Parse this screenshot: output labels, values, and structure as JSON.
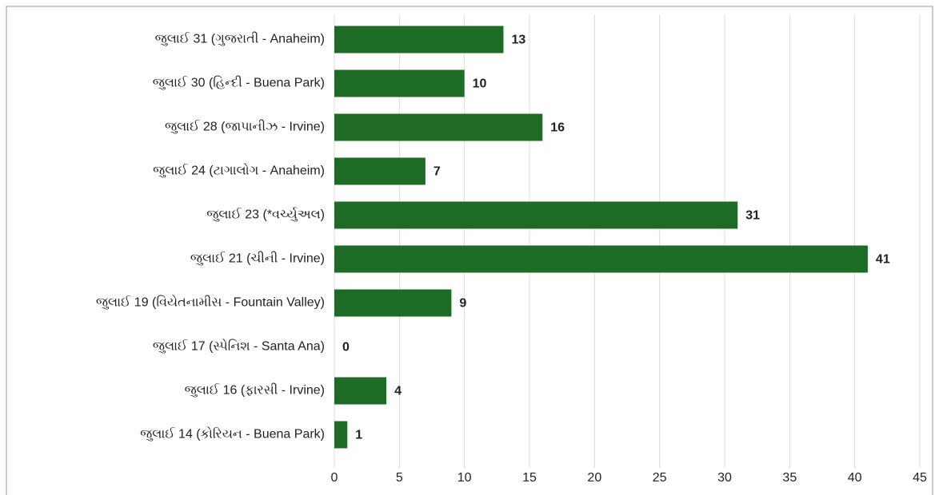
{
  "chart_data": {
    "type": "bar",
    "orientation": "horizontal",
    "categories": [
      "જુલાઈ 31 (ગુજરાતી - Anaheim)",
      "જુલાઈ 30 (હિન્દી - Buena Park)",
      "જુલાઈ 28 (જાપાનીઝ - Irvine)",
      "જુલાઈ 24 (ટાગાલોગ - Anaheim)",
      "જુલાઈ 23 (*વર્ચ્યુઅલ)",
      "જુલાઈ 21 (ચીની - Irvine)",
      "જુલાઈ 19 (વિયેતનામીસ - Fountain Valley)",
      "જુલાઈ 17 (સ્પેનિશ - Santa Ana)",
      "જુલાઈ 16 (ફારસી - Irvine)",
      "જુલાઈ 14 (કોરિયન - Buena Park)"
    ],
    "values": [
      13,
      10,
      16,
      7,
      31,
      41,
      9,
      0,
      4,
      1
    ],
    "color": "#1e6b25",
    "xlim": [
      0,
      45
    ],
    "xticks": [
      0,
      5,
      10,
      15,
      20,
      25,
      30,
      35,
      40,
      45
    ],
    "grid": true
  }
}
